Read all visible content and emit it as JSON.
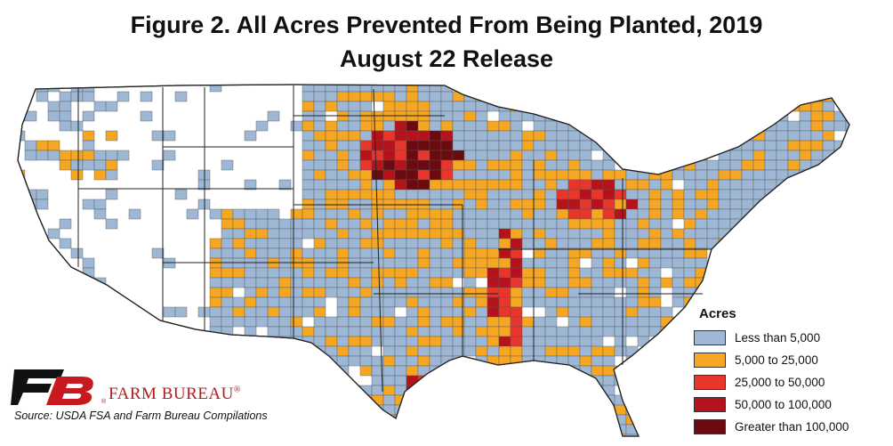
{
  "title_line1": "Figure 2. All Acres Prevented From Being Planted, 2019",
  "title_line2": "August 22 Release",
  "legend": {
    "title": "Acres",
    "items": [
      {
        "label": "Less than 5,000",
        "color": "#9db7d5"
      },
      {
        "label": "5,000 to 25,000",
        "color": "#f5a623"
      },
      {
        "label": "25,000 to 50,000",
        "color": "#e8362c"
      },
      {
        "label": "50,000 to 100,000",
        "color": "#b5121b"
      },
      {
        "label": "Greater than 100,000",
        "color": "#6b0a0f"
      }
    ]
  },
  "branding": {
    "name": "FARM BUREAU",
    "registered": "®"
  },
  "source": "Source: USDA FSA and Farm Bureau Compilations",
  "colors": {
    "no_data": "#ffffff",
    "state_border": "#222222",
    "county_border": "#5a5a5a"
  }
}
